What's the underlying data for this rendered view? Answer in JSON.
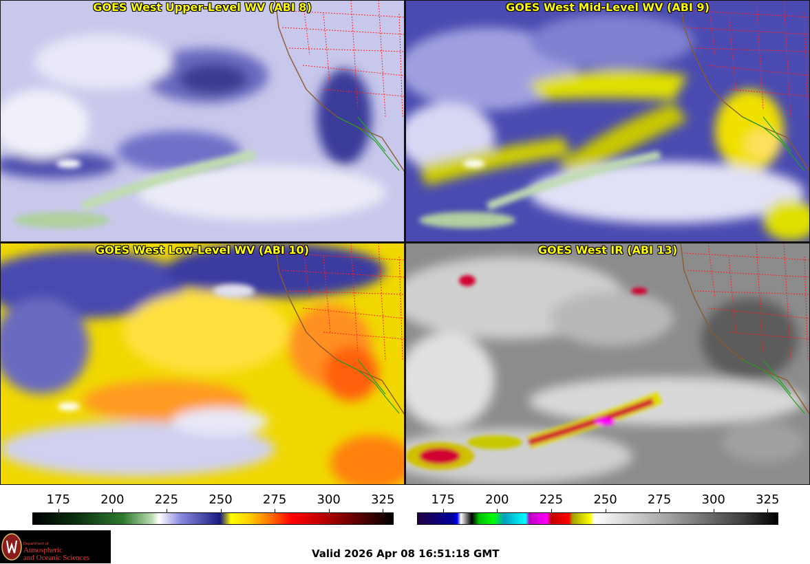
{
  "panels": [
    {
      "title": "GOES West Upper-Level WV (ABI 8)",
      "palette": "wv"
    },
    {
      "title": "GOES West Mid-Level WV (ABI 9)",
      "palette": "wv"
    },
    {
      "title": "GOES West Low-Level WV (ABI 10)",
      "palette": "wv"
    },
    {
      "title": "GOES West IR (ABI 13)",
      "palette": "ir"
    }
  ],
  "colorbars": {
    "left": {
      "ticks": [
        "175",
        "200",
        "225",
        "250",
        "275",
        "300",
        "325"
      ],
      "range": [
        163,
        330
      ]
    },
    "right": {
      "ticks": [
        "175",
        "200",
        "225",
        "250",
        "275",
        "300",
        "325"
      ],
      "range": [
        163,
        330
      ]
    }
  },
  "logo": {
    "dept": "Department of",
    "line1": "Atmospheric",
    "line2": "and Oceanic Sciences"
  },
  "valid_time": "Valid 2026 Apr 08 16:51:18 GMT",
  "colors": {
    "title_text": "#ffff00",
    "coast": "#8b5a2b",
    "state_borders": "#ff2020",
    "mexico_coast": "#20a020"
  }
}
